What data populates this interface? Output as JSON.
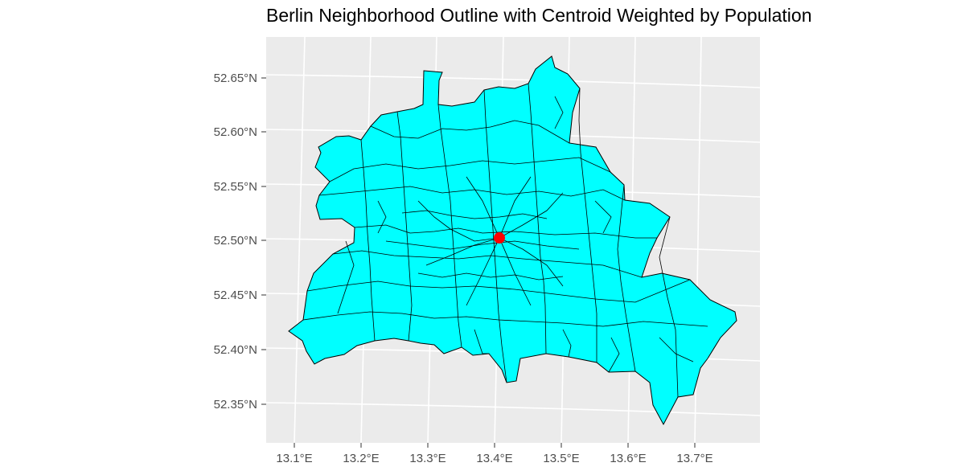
{
  "title": "Berlin Neighborhood Outline with Centroid Weighted by Population",
  "map": {
    "background_color": "#ebebeb",
    "grid_color": "#ffffff",
    "fill_color": "#00ffff",
    "border_color": "#000000",
    "x_ticks": [
      "13.1°E",
      "13.2°E",
      "13.3°E",
      "13.4°E",
      "13.5°E",
      "13.6°E",
      "13.7°E"
    ],
    "y_ticks": [
      "52.65°N",
      "52.60°N",
      "52.55°N",
      "52.50°N",
      "52.45°N",
      "52.40°N",
      "52.35°N"
    ],
    "centroid": {
      "lon": 13.408,
      "lat": 52.503,
      "color": "#ff0000"
    }
  }
}
